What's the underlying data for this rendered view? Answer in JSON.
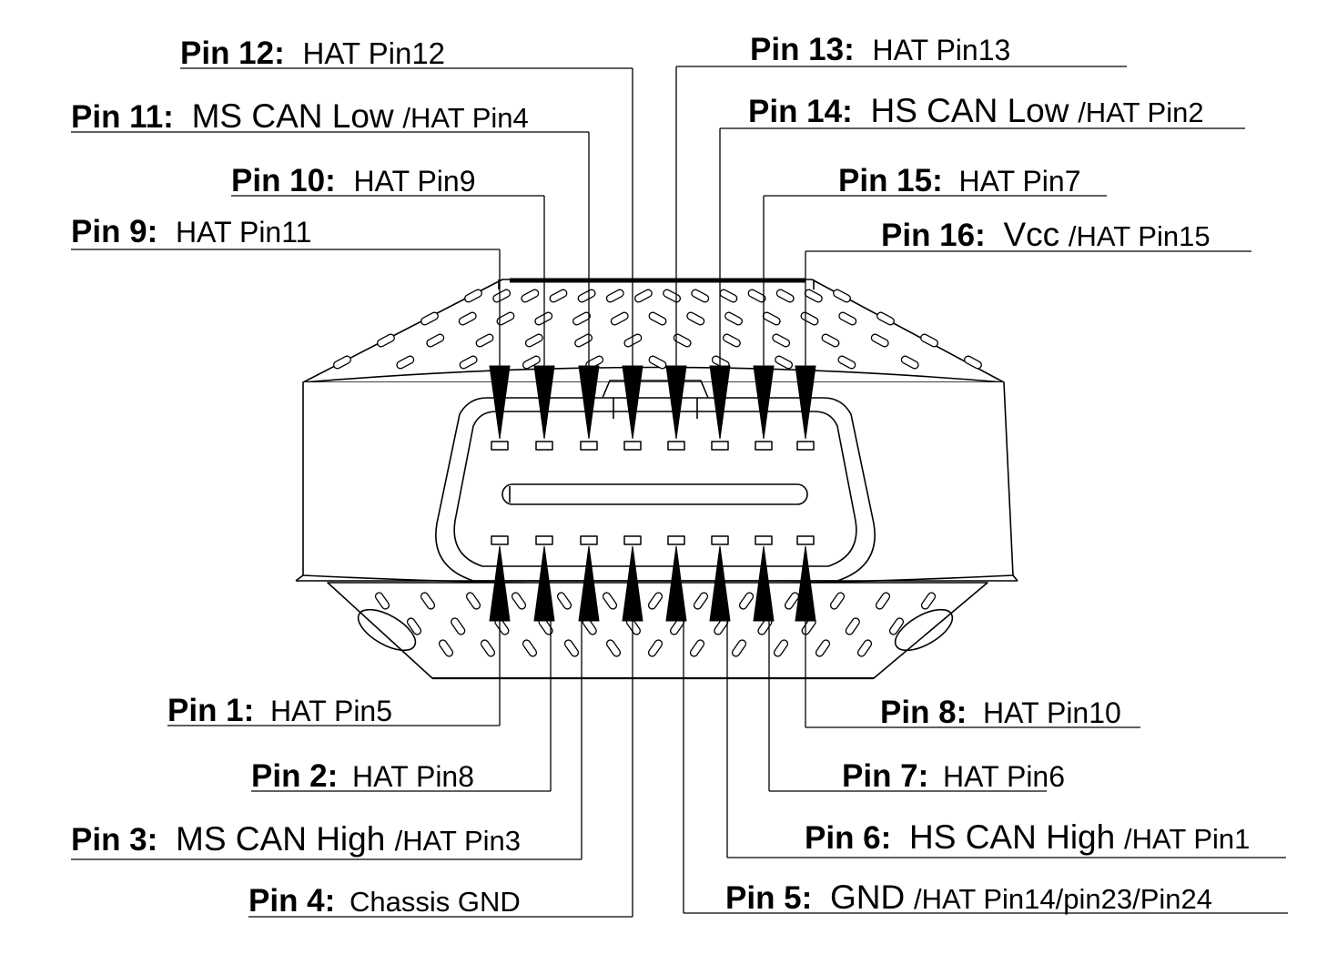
{
  "connector": {
    "name": "obd2-connector",
    "top_row_pins": [
      9,
      10,
      11,
      12,
      13,
      14,
      15,
      16
    ],
    "bottom_row_pins": [
      1,
      2,
      3,
      4,
      5,
      6,
      7,
      8
    ]
  },
  "pins": [
    {
      "id": "pin-1",
      "pin": "Pin 1:",
      "main": "",
      "hat": "HAT Pin5"
    },
    {
      "id": "pin-2",
      "pin": "Pin 2:",
      "main": "",
      "hat": "HAT Pin8"
    },
    {
      "id": "pin-3",
      "pin": "Pin 3:",
      "main": "MS CAN High ",
      "hat": "/HAT Pin3"
    },
    {
      "id": "pin-4",
      "pin": "Pin 4:",
      "main": "",
      "hat": "Chassis GND"
    },
    {
      "id": "pin-5",
      "pin": "Pin 5:",
      "main": "GND",
      "hat": "/HAT Pin14/pin23/Pin24"
    },
    {
      "id": "pin-6",
      "pin": "Pin 6:",
      "main": "HS CAN High",
      "hat": "/HAT Pin1"
    },
    {
      "id": "pin-7",
      "pin": "Pin 7:",
      "main": "",
      "hat": "HAT Pin6"
    },
    {
      "id": "pin-8",
      "pin": "Pin 8:",
      "main": "",
      "hat": "HAT Pin10"
    },
    {
      "id": "pin-9",
      "pin": "Pin 9:",
      "main": "",
      "hat": "HAT Pin11"
    },
    {
      "id": "pin-10",
      "pin": "Pin 10:",
      "main": "",
      "hat": "HAT Pin9"
    },
    {
      "id": "pin-11",
      "pin": "Pin 11:",
      "main": "MS CAN Low",
      "hat": "/HAT Pin4"
    },
    {
      "id": "pin-12",
      "pin": "Pin 12:",
      "main": "",
      "hat": "HAT Pin12"
    },
    {
      "id": "pin-13",
      "pin": "Pin 13:",
      "main": "",
      "hat": "HAT Pin13"
    },
    {
      "id": "pin-14",
      "pin": "Pin 14:",
      "main": "HS CAN Low",
      "hat": "/HAT Pin2"
    },
    {
      "id": "pin-15",
      "pin": "Pin 15:",
      "main": "",
      "hat": "HAT Pin7"
    },
    {
      "id": "pin-16",
      "pin": "Pin 16:",
      "main": "Vcc",
      "hat": "/HAT Pin15"
    }
  ]
}
